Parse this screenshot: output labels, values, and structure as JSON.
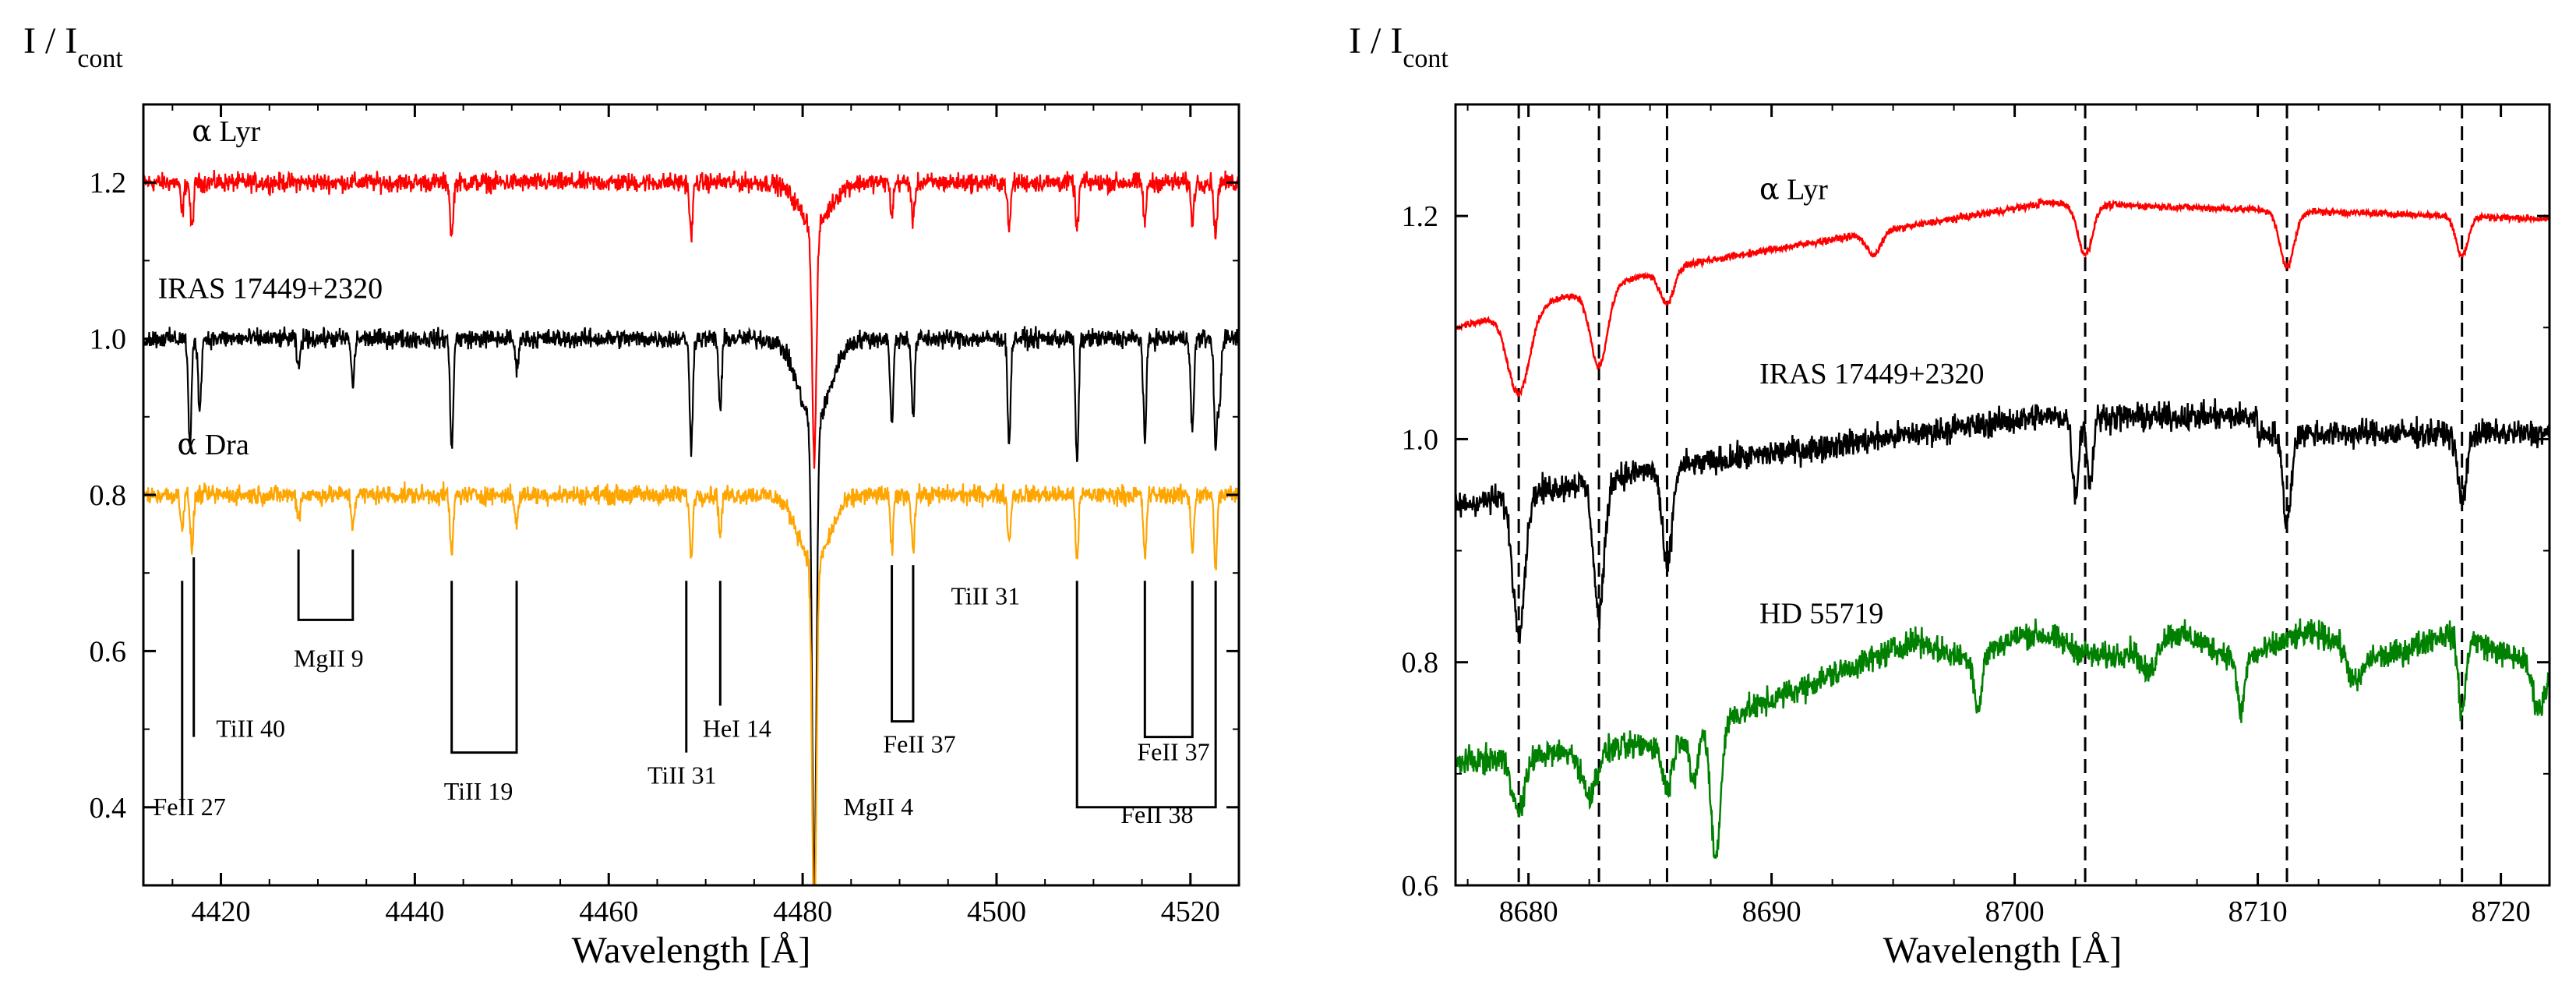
{
  "chart_data": [
    {
      "type": "line",
      "ylabel_main": "I / I",
      "ylabel_sub": "cont",
      "xlabel": "Wavelength [Å]",
      "xlim": [
        4412,
        4525
      ],
      "ylim": [
        0.3,
        1.3
      ],
      "xticks": [
        4420,
        4440,
        4460,
        4480,
        4500,
        4520
      ],
      "yticks": [
        0.4,
        0.6,
        0.8,
        1.0,
        1.2
      ],
      "xtick_labels": [
        "4420",
        "4440",
        "4460",
        "4480",
        "4500",
        "4520"
      ],
      "ytick_labels": [
        "0.4",
        "0.6",
        "0.8",
        "1.0",
        "1.2"
      ],
      "grid": false,
      "series": [
        {
          "name": "α Lyr",
          "name_symbol": "α",
          "name_rest": " Lyr",
          "color": "#ff0000",
          "continuum": 1.2,
          "label_at": [
            4417,
            1.253
          ],
          "lines": [
            [
              4416.0,
              0.04
            ],
            [
              4417.0,
              0.06
            ],
            [
              4443.8,
              0.07
            ],
            [
              4468.5,
              0.07
            ],
            [
              4481.2,
              0.3
            ],
            [
              4489.2,
              0.04
            ],
            [
              4491.4,
              0.05
            ],
            [
              4501.3,
              0.06
            ],
            [
              4508.3,
              0.06
            ],
            [
              4515.3,
              0.05
            ],
            [
              4520.2,
              0.05
            ],
            [
              4522.6,
              0.07
            ]
          ]
        },
        {
          "name": "IRAS 17449+2320",
          "color": "#000000",
          "continuum": 1.0,
          "label_at": [
            4413.5,
            1.052
          ],
          "lines": [
            [
              4416.8,
              0.14
            ],
            [
              4417.8,
              0.09
            ],
            [
              4428.0,
              0.04
            ],
            [
              4433.6,
              0.06
            ],
            [
              4443.8,
              0.14
            ],
            [
              4450.5,
              0.04
            ],
            [
              4468.5,
              0.14
            ],
            [
              4471.5,
              0.09
            ],
            [
              4481.2,
              0.6
            ],
            [
              4489.2,
              0.11
            ],
            [
              4491.4,
              0.1
            ],
            [
              4501.3,
              0.13
            ],
            [
              4508.3,
              0.16
            ],
            [
              4515.3,
              0.13
            ],
            [
              4520.2,
              0.12
            ],
            [
              4522.6,
              0.14
            ],
            [
              4523.0,
              0.08
            ]
          ]
        },
        {
          "name": "α Dra",
          "name_symbol": "α",
          "name_rest": " Dra",
          "color": "#ffa500",
          "continuum": 0.8,
          "label_at": [
            4415.5,
            0.852
          ],
          "lines": [
            [
              4416.0,
              0.04
            ],
            [
              4417.0,
              0.07
            ],
            [
              4428.0,
              0.03
            ],
            [
              4433.6,
              0.04
            ],
            [
              4443.8,
              0.08
            ],
            [
              4450.5,
              0.04
            ],
            [
              4468.5,
              0.08
            ],
            [
              4471.5,
              0.05
            ],
            [
              4481.2,
              0.48
            ],
            [
              4489.2,
              0.07
            ],
            [
              4491.4,
              0.07
            ],
            [
              4501.3,
              0.06
            ],
            [
              4508.3,
              0.08
            ],
            [
              4515.3,
              0.08
            ],
            [
              4520.2,
              0.07
            ],
            [
              4522.6,
              0.09
            ]
          ]
        }
      ],
      "line_ids": [
        {
          "label": "FeII 27",
          "text_at": [
            4413,
            0.39
          ],
          "ticks": [
            [
              4416.0,
              0.4,
              0.69
            ]
          ]
        },
        {
          "label": "TiII 40",
          "text_at": [
            4419.5,
            0.49
          ],
          "ticks": [
            [
              4417.2,
              0.49,
              0.72
            ]
          ]
        },
        {
          "label": "MgII 9",
          "text_at": [
            4427.5,
            0.58
          ],
          "bracket": [
            4428.0,
            4433.6,
            0.64,
            0.73
          ]
        },
        {
          "label": "TiII 19",
          "text_at": [
            4443,
            0.41
          ],
          "bracket": [
            4443.8,
            4450.5,
            0.47,
            0.69
          ]
        },
        {
          "label": "TiII 31",
          "text_at": [
            4464,
            0.43
          ],
          "ticks": [
            [
              4468.0,
              0.47,
              0.69
            ]
          ]
        },
        {
          "label": "HeI 14",
          "text_at": [
            4469.7,
            0.49
          ],
          "ticks": [
            [
              4471.5,
              0.53,
              0.69
            ]
          ]
        },
        {
          "label": "MgII 4",
          "text_at": [
            4484.2,
            0.39
          ],
          "ticks": []
        },
        {
          "label": "FeII 37",
          "text_at": [
            4488.3,
            0.47
          ],
          "bracket": [
            4489.2,
            4491.4,
            0.51,
            0.71
          ]
        },
        {
          "label": "TiII 31",
          "text_at": [
            4495.3,
            0.66
          ],
          "ticks": []
        },
        {
          "label": "FeII 37",
          "text_at": [
            4514.5,
            0.46
          ],
          "bracket": [
            4515.3,
            4520.2,
            0.49,
            0.69
          ]
        },
        {
          "label": "FeII 38",
          "text_at": [
            4512.8,
            0.38
          ],
          "bracket": [
            4508.3,
            4522.6,
            0.4,
            0.69
          ]
        }
      ]
    },
    {
      "type": "line",
      "ylabel_main": "I / I",
      "ylabel_sub": "cont",
      "xlabel": "Wavelength [Å]",
      "xlim": [
        8677,
        8722
      ],
      "ylim": [
        0.6,
        1.3
      ],
      "xticks": [
        8680,
        8690,
        8700,
        8710,
        8720
      ],
      "yticks": [
        0.6,
        0.8,
        1.0,
        1.2
      ],
      "xtick_labels": [
        "8680",
        "8690",
        "8700",
        "8710",
        "8720"
      ],
      "ytick_labels": [
        "0.6",
        "0.8",
        "1.0",
        "1.2"
      ],
      "grid": false,
      "dashed_lines_x": [
        8679.6,
        8682.9,
        8685.7,
        8702.9,
        8711.2,
        8718.4
      ],
      "series": [
        {
          "name": "α Lyr",
          "name_symbol": "α",
          "name_rest": " Lyr",
          "color": "#ff0000",
          "label_at": [
            8689.5,
            1.215
          ]
        },
        {
          "name": "IRAS 17449+2320",
          "color": "#000000",
          "label_at": [
            8689.5,
            1.05
          ]
        },
        {
          "name": "HD 55719",
          "color": "#008000",
          "label_at": [
            8689.5,
            0.835
          ]
        }
      ]
    }
  ]
}
